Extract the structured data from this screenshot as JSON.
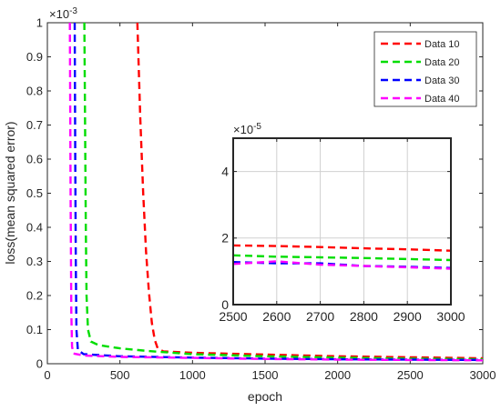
{
  "chart_data": [
    {
      "type": "line",
      "title": "",
      "xlabel": "epoch",
      "ylabel": "loss(mean squared error)",
      "xlim": [
        0,
        3000
      ],
      "ylim": [
        0,
        1
      ],
      "x_ticks": [
        "0",
        "500",
        "1000",
        "1500",
        "2000",
        "2500",
        "3000"
      ],
      "y_ticks": [
        "0",
        "0.1",
        "0.2",
        "0.3",
        "0.4",
        "0.5",
        "0.6",
        "0.7",
        "0.8",
        "0.9",
        "1"
      ],
      "y_exponent_base": "×10",
      "y_exponent": "-3",
      "grid": false,
      "legend_position": "top-right",
      "series": [
        {
          "name": "Data 10",
          "color": "#ff0000",
          "style": "dashed",
          "points": [
            [
              620,
              1.0
            ],
            [
              640,
              0.72
            ],
            [
              660,
              0.5
            ],
            [
              680,
              0.33
            ],
            [
              700,
              0.21
            ],
            [
              720,
              0.12
            ],
            [
              740,
              0.07
            ],
            [
              760,
              0.045
            ],
            [
              800,
              0.036
            ],
            [
              1000,
              0.032
            ],
            [
              1500,
              0.027
            ],
            [
              2000,
              0.022
            ],
            [
              2500,
              0.019
            ],
            [
              3000,
              0.016
            ]
          ]
        },
        {
          "name": "Data 20",
          "color": "#00dd00",
          "style": "dashed",
          "points": [
            [
              255,
              1.0
            ],
            [
              260,
              0.7
            ],
            [
              265,
              0.4
            ],
            [
              270,
              0.2
            ],
            [
              280,
              0.1
            ],
            [
              300,
              0.065
            ],
            [
              350,
              0.055
            ],
            [
              500,
              0.045
            ],
            [
              700,
              0.037
            ],
            [
              1000,
              0.028
            ],
            [
              1500,
              0.022
            ],
            [
              2000,
              0.018
            ],
            [
              2500,
              0.015
            ],
            [
              3000,
              0.013
            ]
          ]
        },
        {
          "name": "Data 30",
          "color": "#0000ff",
          "style": "dashed",
          "points": [
            [
              188,
              1.0
            ],
            [
              192,
              0.6
            ],
            [
              196,
              0.3
            ],
            [
              200,
              0.1
            ],
            [
              210,
              0.04
            ],
            [
              250,
              0.028
            ],
            [
              500,
              0.022
            ],
            [
              1000,
              0.018
            ],
            [
              1500,
              0.015
            ],
            [
              2000,
              0.013
            ],
            [
              2500,
              0.012
            ],
            [
              3000,
              0.011
            ]
          ]
        },
        {
          "name": "Data 40",
          "color": "#ff00ff",
          "style": "dashed",
          "points": [
            [
              155,
              1.0
            ],
            [
              160,
              0.5
            ],
            [
              165,
              0.15
            ],
            [
              170,
              0.05
            ],
            [
              180,
              0.03
            ],
            [
              250,
              0.024
            ],
            [
              500,
              0.02
            ],
            [
              1000,
              0.017
            ],
            [
              1500,
              0.014
            ],
            [
              2000,
              0.012
            ],
            [
              2500,
              0.011
            ],
            [
              3000,
              0.01
            ]
          ]
        }
      ]
    },
    {
      "type": "line",
      "title": "",
      "xlim": [
        2500,
        3000
      ],
      "ylim": [
        0,
        5
      ],
      "x_ticks": [
        "2500",
        "2600",
        "2700",
        "2800",
        "2900",
        "3000"
      ],
      "y_ticks": [
        "0",
        "2",
        "4"
      ],
      "y_exponent_base": "×10",
      "y_exponent": "-5",
      "grid": true,
      "series": [
        {
          "name": "Data 10",
          "color": "#ff0000",
          "style": "dashed",
          "points": [
            [
              2500,
              1.78
            ],
            [
              2600,
              1.76
            ],
            [
              2700,
              1.73
            ],
            [
              2800,
              1.69
            ],
            [
              2900,
              1.66
            ],
            [
              3000,
              1.62
            ]
          ]
        },
        {
          "name": "Data 20",
          "color": "#00dd00",
          "style": "dashed",
          "points": [
            [
              2500,
              1.48
            ],
            [
              2600,
              1.44
            ],
            [
              2700,
              1.42
            ],
            [
              2800,
              1.4
            ],
            [
              2900,
              1.37
            ],
            [
              3000,
              1.34
            ]
          ]
        },
        {
          "name": "Data 30",
          "color": "#0000ff",
          "style": "dashed",
          "points": [
            [
              2500,
              1.28
            ],
            [
              2600,
              1.24
            ],
            [
              2700,
              1.24
            ],
            [
              2800,
              1.16
            ],
            [
              2900,
              1.14
            ],
            [
              3000,
              1.1
            ]
          ]
        },
        {
          "name": "Data 40",
          "color": "#ff00ff",
          "style": "dashed",
          "points": [
            [
              2500,
              1.22
            ],
            [
              2600,
              1.3
            ],
            [
              2700,
              1.2
            ],
            [
              2800,
              1.16
            ],
            [
              2900,
              1.12
            ],
            [
              3000,
              1.08
            ]
          ]
        }
      ]
    }
  ]
}
